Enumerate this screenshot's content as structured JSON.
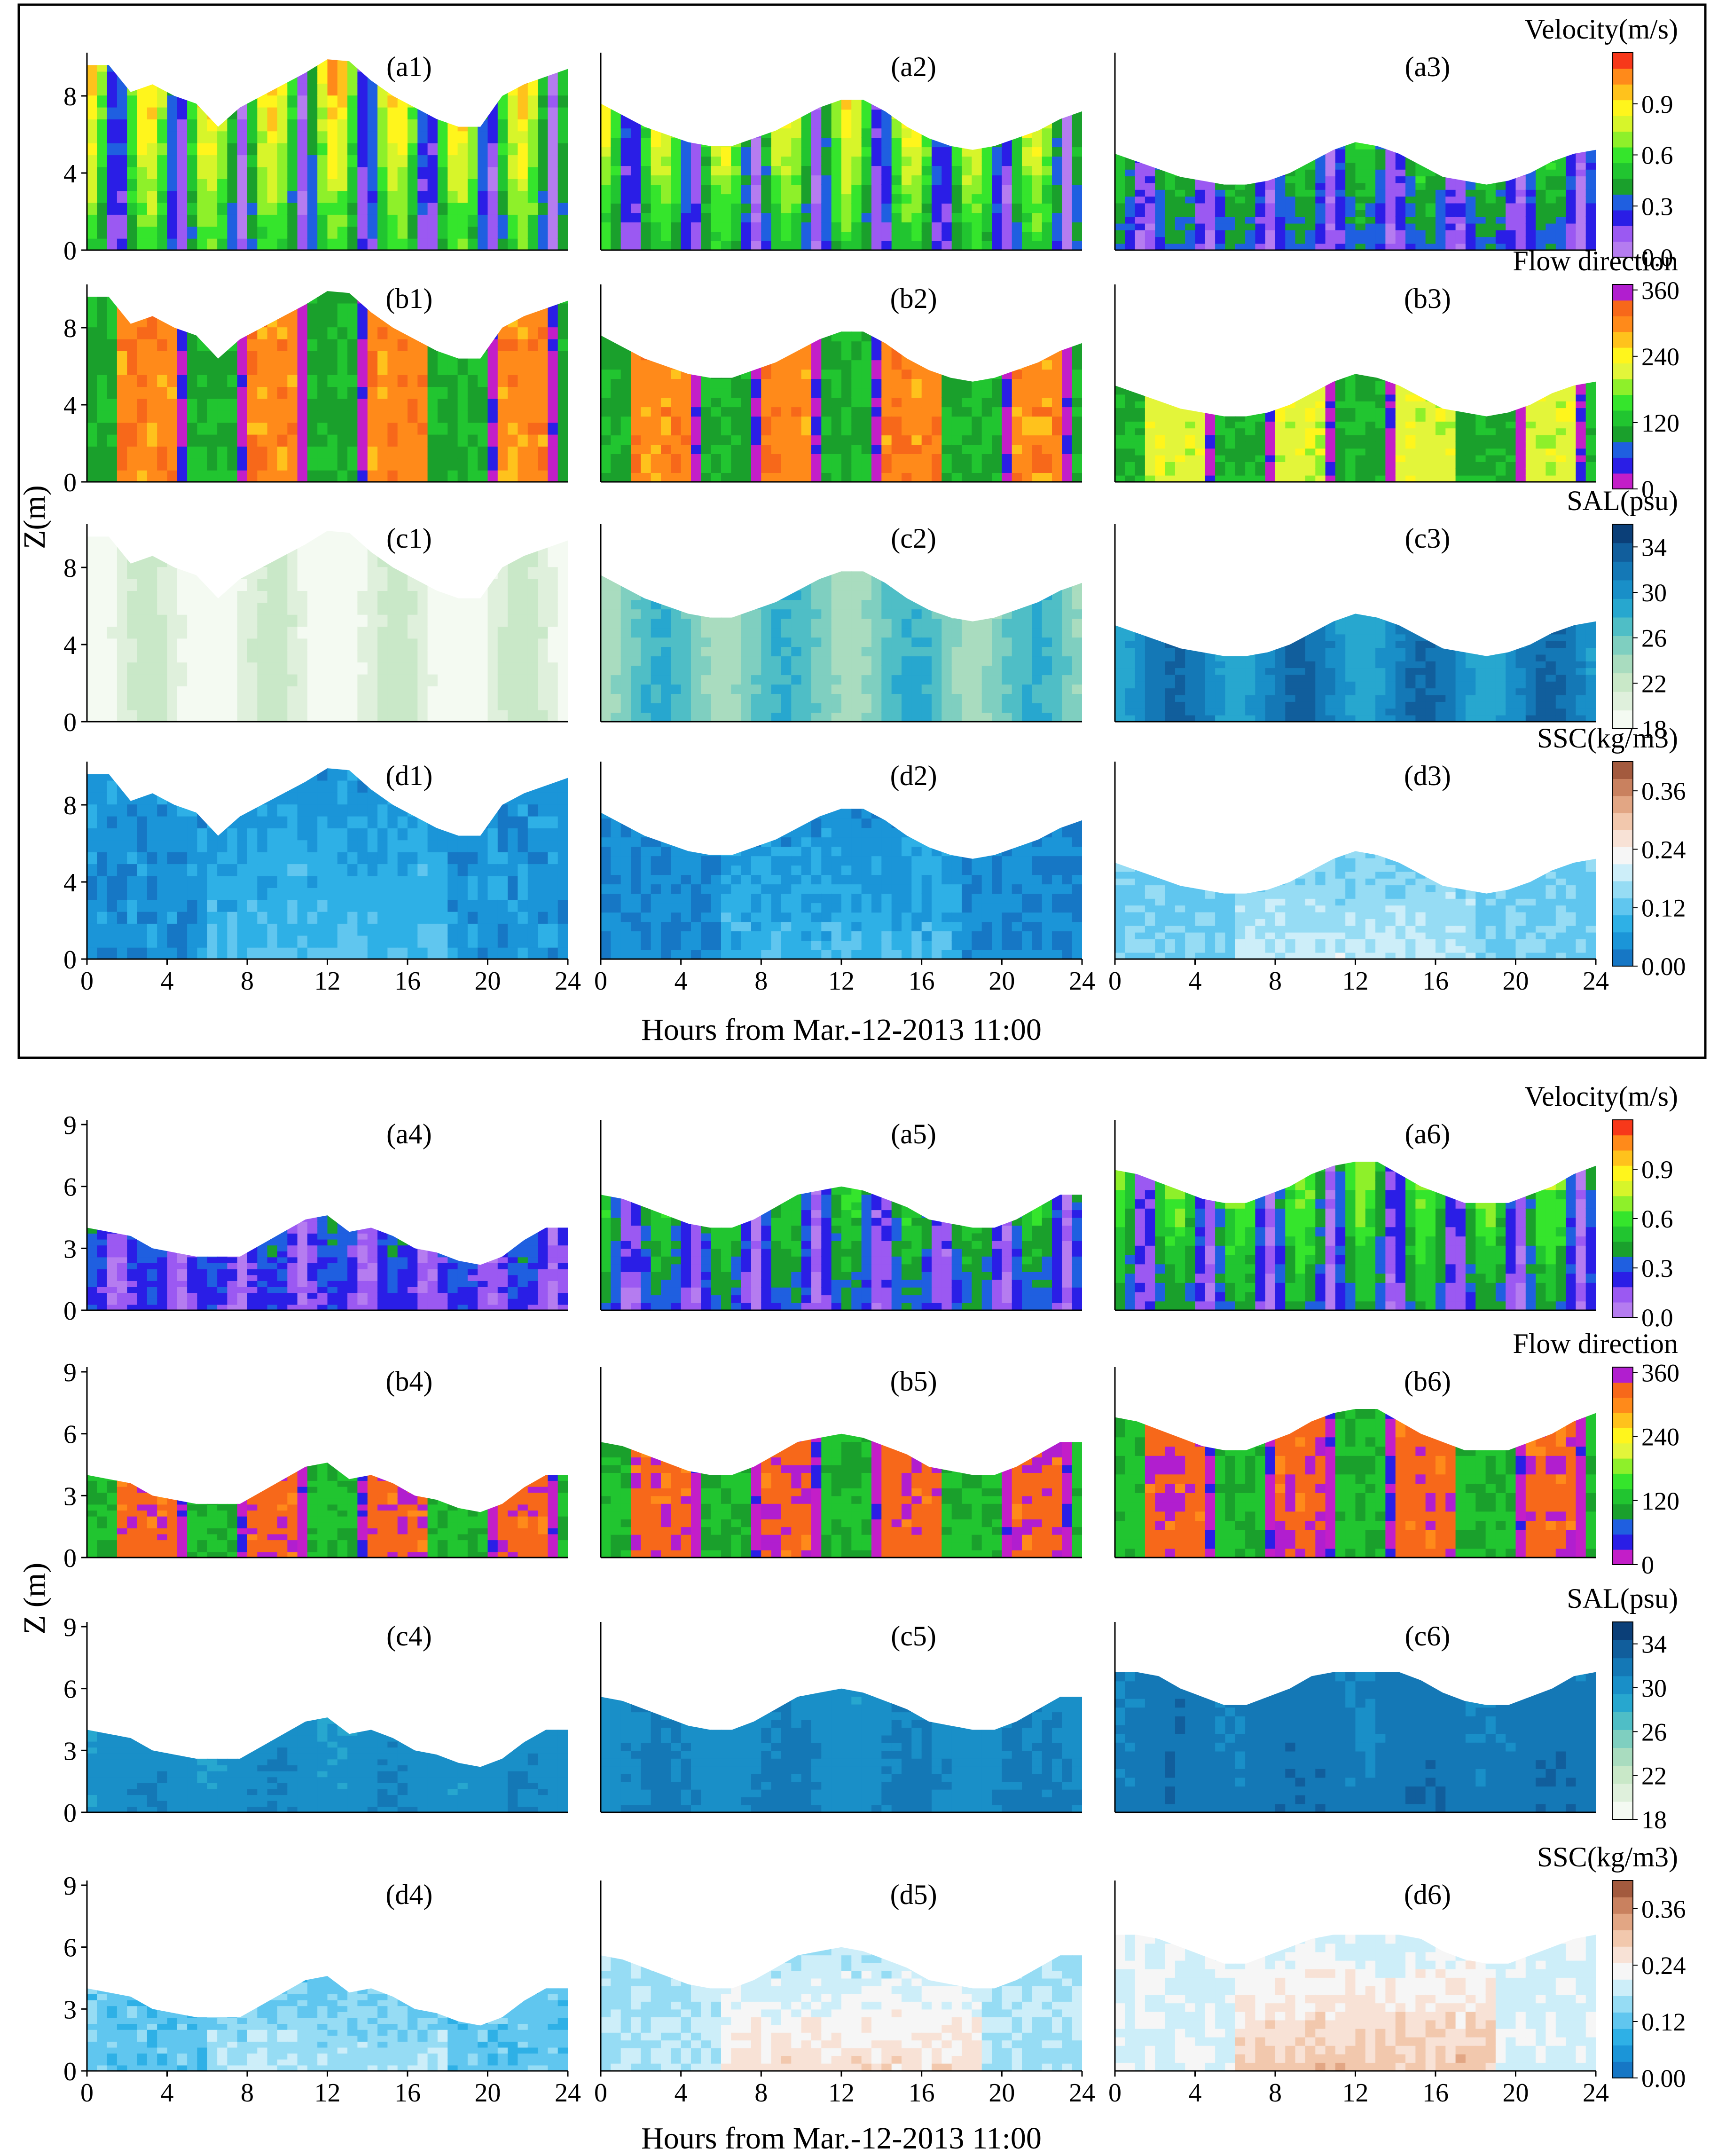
{
  "figure": {
    "xlabel_top": "Hours from Mar.-12-2013 11:00",
    "xlabel_bottom": "Hours from Mar.-12-2013 11:00",
    "ylabel_top": "Z(m)",
    "ylabel_bottom": "Z (m)"
  },
  "chart_data": [
    {
      "type": "heatmap",
      "group": "upper",
      "xlabel": "Hours from Mar.-12-2013 11:00",
      "ylabel": "Z(m)",
      "xlim": [
        0,
        24
      ],
      "ylim": [
        0,
        10
      ],
      "xticks": [
        "0",
        "4",
        "8",
        "12",
        "16",
        "20",
        "24"
      ],
      "yticks": [
        "0",
        "4",
        "8"
      ],
      "variables": [
        {
          "key": "velocity",
          "colorbar_title": "Velocity(m/s)",
          "colorbar_ticks": [
            "0.0",
            "0.3",
            "0.6",
            "0.9"
          ],
          "range": [
            0,
            1.2
          ],
          "colors": [
            "#b57cf0",
            "#9b59f2",
            "#2a1ee6",
            "#1f5fe0",
            "#1aa02c",
            "#21c530",
            "#35e52c",
            "#8ef02a",
            "#d7f52a",
            "#fff51c",
            "#ffc21c",
            "#ff8a1a",
            "#f7381a"
          ]
        },
        {
          "key": "direction",
          "colorbar_title": "Flow direction",
          "colorbar_ticks": [
            "0",
            "120",
            "240",
            "360"
          ],
          "range": [
            0,
            370
          ],
          "colors": [
            "#c31ec8",
            "#2a1ee6",
            "#1f5fe0",
            "#1aa02c",
            "#21c530",
            "#35e52c",
            "#8ef02a",
            "#e3f53a",
            "#fff51c",
            "#ffc21c",
            "#ff8a1a",
            "#f7681a",
            "#b11ecf"
          ]
        },
        {
          "key": "salinity",
          "colorbar_title": "SAL(psu)",
          "colorbar_ticks": [
            "18",
            "22",
            "26",
            "30",
            "34"
          ],
          "range": [
            18,
            36
          ],
          "colors": [
            "#f4faf2",
            "#dff0dc",
            "#c9e8c8",
            "#a9dcbf",
            "#7fcfc0",
            "#4fbec6",
            "#27a7cf",
            "#198fc8",
            "#1478b6",
            "#115e9c",
            "#0b3f78"
          ]
        },
        {
          "key": "ssc",
          "colorbar_title": "SSC(kg/m3)",
          "colorbar_ticks": [
            "0.00",
            "0.12",
            "0.24",
            "0.36"
          ],
          "range": [
            0,
            0.42
          ],
          "colors": [
            "#1677c5",
            "#1b95d8",
            "#2eb0e6",
            "#60c6ef",
            "#96dcf4",
            "#cdeef9",
            "#f6f6f6",
            "#f8e2d6",
            "#f2c8ad",
            "#e2a684",
            "#c9815f",
            "#a35a3e"
          ]
        }
      ],
      "panels": [
        {
          "label": "(a1)",
          "var": "velocity",
          "surface": [
            9.6,
            9.6,
            8.2,
            8.6,
            8.0,
            7.6,
            6.4,
            7.4,
            8.0,
            8.6,
            9.2,
            9.9,
            9.8,
            8.8,
            8.0,
            7.4,
            6.8,
            6.4,
            6.4,
            8.0,
            8.6,
            9.0,
            9.4
          ]
        },
        {
          "label": "(a2)",
          "var": "velocity",
          "surface": [
            7.6,
            7.0,
            6.4,
            6.0,
            5.6,
            5.4,
            5.4,
            5.8,
            6.2,
            6.8,
            7.4,
            7.8,
            7.8,
            7.2,
            6.4,
            5.8,
            5.4,
            5.2,
            5.4,
            5.8,
            6.2,
            6.8,
            7.2
          ]
        },
        {
          "label": "(a3)",
          "var": "velocity",
          "surface": [
            5.0,
            4.6,
            4.2,
            3.8,
            3.6,
            3.4,
            3.4,
            3.6,
            4.0,
            4.6,
            5.2,
            5.6,
            5.4,
            5.0,
            4.4,
            3.8,
            3.6,
            3.4,
            3.6,
            4.0,
            4.6,
            5.0,
            5.2
          ]
        },
        {
          "label": "(b1)",
          "var": "direction",
          "surface": [
            9.6,
            9.6,
            8.2,
            8.6,
            8.0,
            7.6,
            6.4,
            7.4,
            8.0,
            8.6,
            9.2,
            9.9,
            9.8,
            8.8,
            8.0,
            7.4,
            6.8,
            6.4,
            6.4,
            8.0,
            8.6,
            9.0,
            9.4
          ]
        },
        {
          "label": "(b2)",
          "var": "direction",
          "surface": [
            7.6,
            7.0,
            6.4,
            6.0,
            5.6,
            5.4,
            5.4,
            5.8,
            6.2,
            6.8,
            7.4,
            7.8,
            7.8,
            7.2,
            6.4,
            5.8,
            5.4,
            5.2,
            5.4,
            5.8,
            6.2,
            6.8,
            7.2
          ]
        },
        {
          "label": "(b3)",
          "var": "direction",
          "surface": [
            5.0,
            4.6,
            4.2,
            3.8,
            3.6,
            3.4,
            3.4,
            3.6,
            4.0,
            4.6,
            5.2,
            5.6,
            5.4,
            5.0,
            4.4,
            3.8,
            3.6,
            3.4,
            3.6,
            4.0,
            4.6,
            5.0,
            5.2
          ]
        },
        {
          "label": "(c1)",
          "var": "salinity",
          "surface": [
            9.6,
            9.6,
            8.2,
            8.6,
            8.0,
            7.6,
            6.4,
            7.4,
            8.0,
            8.6,
            9.2,
            9.9,
            9.8,
            8.8,
            8.0,
            7.4,
            6.8,
            6.4,
            6.4,
            8.0,
            8.6,
            9.0,
            9.4
          ]
        },
        {
          "label": "(c2)",
          "var": "salinity",
          "surface": [
            7.6,
            7.0,
            6.4,
            6.0,
            5.6,
            5.4,
            5.4,
            5.8,
            6.2,
            6.8,
            7.4,
            7.8,
            7.8,
            7.2,
            6.4,
            5.8,
            5.4,
            5.2,
            5.4,
            5.8,
            6.2,
            6.8,
            7.2
          ]
        },
        {
          "label": "(c3)",
          "var": "salinity",
          "surface": [
            5.0,
            4.6,
            4.2,
            3.8,
            3.6,
            3.4,
            3.4,
            3.6,
            4.0,
            4.6,
            5.2,
            5.6,
            5.4,
            5.0,
            4.4,
            3.8,
            3.6,
            3.4,
            3.6,
            4.0,
            4.6,
            5.0,
            5.2
          ]
        },
        {
          "label": "(d1)",
          "var": "ssc",
          "surface": [
            9.6,
            9.6,
            8.2,
            8.6,
            8.0,
            7.6,
            6.4,
            7.4,
            8.0,
            8.6,
            9.2,
            9.9,
            9.8,
            8.8,
            8.0,
            7.4,
            6.8,
            6.4,
            6.4,
            8.0,
            8.6,
            9.0,
            9.4
          ]
        },
        {
          "label": "(d2)",
          "var": "ssc",
          "surface": [
            7.6,
            7.0,
            6.4,
            6.0,
            5.6,
            5.4,
            5.4,
            5.8,
            6.2,
            6.8,
            7.4,
            7.8,
            7.8,
            7.2,
            6.4,
            5.8,
            5.4,
            5.2,
            5.4,
            5.8,
            6.2,
            6.8,
            7.2
          ]
        },
        {
          "label": "(d3)",
          "var": "ssc",
          "surface": [
            5.0,
            4.6,
            4.2,
            3.8,
            3.6,
            3.4,
            3.4,
            3.6,
            4.0,
            4.6,
            5.2,
            5.6,
            5.4,
            5.0,
            4.4,
            3.8,
            3.6,
            3.4,
            3.6,
            4.0,
            4.6,
            5.0,
            5.2
          ]
        }
      ]
    },
    {
      "type": "heatmap",
      "group": "lower",
      "xlabel": "Hours from Mar.-12-2013 11:00",
      "ylabel": "Z (m)",
      "xlim": [
        0,
        24
      ],
      "ylim": [
        0,
        9
      ],
      "xticks": [
        "0",
        "4",
        "8",
        "12",
        "16",
        "20",
        "24"
      ],
      "yticks": [
        "0",
        "3",
        "6",
        "9"
      ],
      "variables": [
        {
          "key": "velocity",
          "colorbar_title": "Velocity(m/s)",
          "colorbar_ticks": [
            "0.0",
            "0.3",
            "0.6",
            "0.9"
          ],
          "range": [
            0,
            1.2
          ],
          "colors": [
            "#b57cf0",
            "#9b59f2",
            "#2a1ee6",
            "#1f5fe0",
            "#1aa02c",
            "#21c530",
            "#35e52c",
            "#8ef02a",
            "#d7f52a",
            "#fff51c",
            "#ffc21c",
            "#ff8a1a",
            "#f7381a"
          ]
        },
        {
          "key": "direction",
          "colorbar_title": "Flow direction",
          "colorbar_ticks": [
            "0",
            "120",
            "240",
            "360"
          ],
          "range": [
            0,
            370
          ],
          "colors": [
            "#c31ec8",
            "#2a1ee6",
            "#1f5fe0",
            "#1aa02c",
            "#21c530",
            "#35e52c",
            "#8ef02a",
            "#e3f53a",
            "#fff51c",
            "#ffc21c",
            "#ff8a1a",
            "#f7681a",
            "#b11ecf"
          ]
        },
        {
          "key": "salinity",
          "colorbar_title": "SAL(psu)",
          "colorbar_ticks": [
            "18",
            "22",
            "26",
            "30",
            "34"
          ],
          "range": [
            18,
            36
          ],
          "colors": [
            "#f4faf2",
            "#dff0dc",
            "#c9e8c8",
            "#a9dcbf",
            "#7fcfc0",
            "#4fbec6",
            "#27a7cf",
            "#198fc8",
            "#1478b6",
            "#115e9c",
            "#0b3f78"
          ]
        },
        {
          "key": "ssc",
          "colorbar_title": "SSC(kg/m3)",
          "colorbar_ticks": [
            "0.00",
            "0.12",
            "0.24",
            "0.36"
          ],
          "range": [
            0,
            0.42
          ],
          "colors": [
            "#1677c5",
            "#1b95d8",
            "#2eb0e6",
            "#60c6ef",
            "#96dcf4",
            "#cdeef9",
            "#f6f6f6",
            "#f8e2d6",
            "#f2c8ad",
            "#e2a684",
            "#c9815f",
            "#a35a3e"
          ]
        }
      ],
      "panels": [
        {
          "label": "(a4)",
          "var": "velocity",
          "surface": [
            4.0,
            3.8,
            3.6,
            3.0,
            2.8,
            2.6,
            2.6,
            2.6,
            3.2,
            3.8,
            4.4,
            4.6,
            3.8,
            4.0,
            3.6,
            3.0,
            2.8,
            2.4,
            2.2,
            2.6,
            3.4,
            4.0,
            4.0
          ]
        },
        {
          "label": "(a5)",
          "var": "velocity",
          "surface": [
            5.6,
            5.4,
            5.0,
            4.6,
            4.2,
            4.0,
            4.0,
            4.4,
            5.0,
            5.6,
            5.8,
            6.0,
            5.8,
            5.4,
            5.0,
            4.4,
            4.2,
            4.0,
            4.0,
            4.4,
            5.0,
            5.6,
            5.6
          ]
        },
        {
          "label": "(a6)",
          "var": "velocity",
          "surface": [
            6.8,
            6.6,
            6.2,
            5.8,
            5.4,
            5.2,
            5.2,
            5.6,
            6.0,
            6.6,
            7.0,
            7.2,
            7.2,
            6.6,
            6.0,
            5.6,
            5.2,
            5.2,
            5.2,
            5.6,
            6.0,
            6.6,
            7.0
          ]
        },
        {
          "label": "(b4)",
          "var": "direction",
          "surface": [
            4.0,
            3.8,
            3.6,
            3.0,
            2.8,
            2.6,
            2.6,
            2.6,
            3.2,
            3.8,
            4.4,
            4.6,
            3.8,
            4.0,
            3.6,
            3.0,
            2.8,
            2.4,
            2.2,
            2.6,
            3.4,
            4.0,
            4.0
          ]
        },
        {
          "label": "(b5)",
          "var": "direction",
          "surface": [
            5.6,
            5.4,
            5.0,
            4.6,
            4.2,
            4.0,
            4.0,
            4.4,
            5.0,
            5.6,
            5.8,
            6.0,
            5.8,
            5.4,
            5.0,
            4.4,
            4.2,
            4.0,
            4.0,
            4.4,
            5.0,
            5.6,
            5.6
          ]
        },
        {
          "label": "(b6)",
          "var": "direction",
          "surface": [
            6.8,
            6.6,
            6.2,
            5.8,
            5.4,
            5.2,
            5.2,
            5.6,
            6.0,
            6.6,
            7.0,
            7.2,
            7.2,
            6.6,
            6.0,
            5.6,
            5.2,
            5.2,
            5.2,
            5.6,
            6.0,
            6.6,
            7.0
          ]
        },
        {
          "label": "(c4)",
          "var": "salinity",
          "surface": [
            4.0,
            3.8,
            3.6,
            3.0,
            2.8,
            2.6,
            2.6,
            2.6,
            3.2,
            3.8,
            4.4,
            4.6,
            3.8,
            4.0,
            3.6,
            3.0,
            2.8,
            2.4,
            2.2,
            2.6,
            3.4,
            4.0,
            4.0
          ]
        },
        {
          "label": "(c5)",
          "var": "salinity",
          "surface": [
            5.6,
            5.4,
            5.0,
            4.6,
            4.2,
            4.0,
            4.0,
            4.4,
            5.0,
            5.6,
            5.8,
            6.0,
            5.8,
            5.4,
            5.0,
            4.4,
            4.2,
            4.0,
            4.0,
            4.4,
            5.0,
            5.6,
            5.6
          ]
        },
        {
          "label": "(c6)",
          "var": "salinity",
          "surface": [
            6.8,
            6.8,
            6.6,
            6.0,
            5.6,
            5.2,
            5.2,
            5.6,
            6.0,
            6.6,
            6.8,
            6.8,
            6.8,
            6.8,
            6.4,
            5.8,
            5.4,
            5.2,
            5.2,
            5.6,
            6.0,
            6.6,
            6.8
          ]
        },
        {
          "label": "(d4)",
          "var": "ssc",
          "surface": [
            4.0,
            3.8,
            3.6,
            3.0,
            2.8,
            2.6,
            2.6,
            2.6,
            3.2,
            3.8,
            4.4,
            4.6,
            3.8,
            4.0,
            3.6,
            3.0,
            2.8,
            2.4,
            2.2,
            2.6,
            3.4,
            4.0,
            4.0
          ]
        },
        {
          "label": "(d5)",
          "var": "ssc",
          "surface": [
            5.6,
            5.4,
            5.0,
            4.6,
            4.2,
            4.0,
            4.0,
            4.4,
            5.0,
            5.6,
            5.8,
            6.0,
            5.8,
            5.4,
            5.0,
            4.4,
            4.2,
            4.0,
            4.0,
            4.4,
            5.0,
            5.6,
            5.6
          ]
        },
        {
          "label": "(d6)",
          "var": "ssc",
          "surface": [
            6.6,
            6.6,
            6.4,
            6.0,
            5.6,
            5.2,
            5.2,
            5.6,
            6.0,
            6.4,
            6.6,
            6.6,
            6.6,
            6.6,
            6.4,
            5.8,
            5.4,
            5.2,
            5.2,
            5.6,
            6.0,
            6.4,
            6.6
          ]
        }
      ]
    }
  ]
}
